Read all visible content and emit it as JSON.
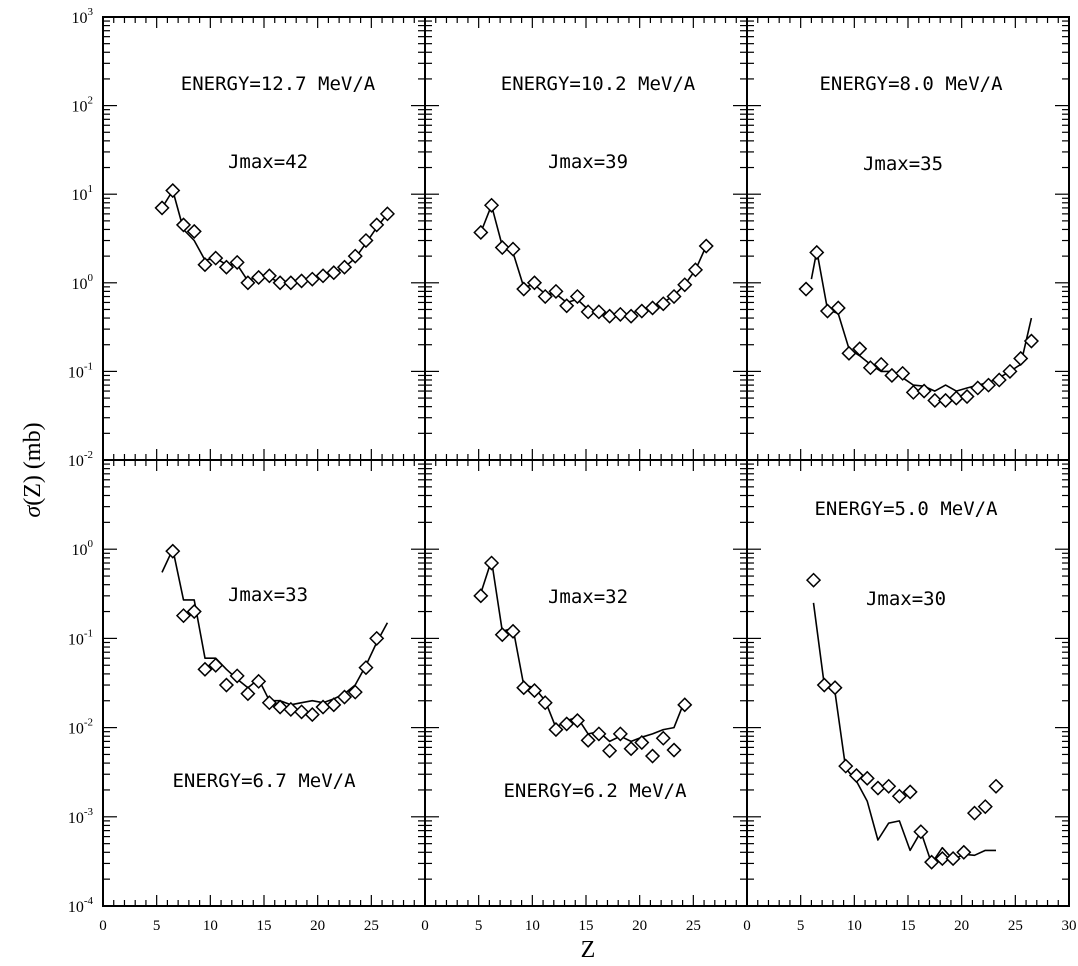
{
  "chart_data": {
    "type": "scatter",
    "ylabel": "σ(Z) (mb)",
    "xlabel": "Z",
    "xlim": [
      0,
      30
    ],
    "x_ticks": [
      "0",
      "5",
      "10",
      "15",
      "20",
      "25"
    ],
    "x_ticks_last": [
      "0",
      "5",
      "10",
      "15",
      "20",
      "25",
      "30"
    ],
    "y_scale": "log",
    "y_ticks_top": [
      {
        "base": "10",
        "exp": "3"
      },
      {
        "base": "10",
        "exp": "2"
      },
      {
        "base": "10",
        "exp": "1"
      },
      {
        "base": "10",
        "exp": "0"
      },
      {
        "base": "10",
        "exp": "-1"
      },
      {
        "base": "10",
        "exp": "-2"
      }
    ],
    "y_ticks_bottom": [
      {
        "base": "10",
        "exp": "0"
      },
      {
        "base": "10",
        "exp": "-1"
      },
      {
        "base": "10",
        "exp": "-2"
      },
      {
        "base": "10",
        "exp": "-3"
      },
      {
        "base": "10",
        "exp": "-4"
      }
    ],
    "panels": [
      {
        "energy": "ENERGY=12.7 MeV/A",
        "jmax": "Jmax=42",
        "ylim": [
          0.01,
          1000
        ],
        "points": [
          [
            5.5,
            7.0
          ],
          [
            6.5,
            11.0
          ],
          [
            7.5,
            4.5
          ],
          [
            8.5,
            3.8
          ],
          [
            9.5,
            1.6
          ],
          [
            10.5,
            1.9
          ],
          [
            11.5,
            1.5
          ],
          [
            12.5,
            1.7
          ],
          [
            13.5,
            1.0
          ],
          [
            14.5,
            1.15
          ],
          [
            15.5,
            1.2
          ],
          [
            16.5,
            1.0
          ],
          [
            17.5,
            1.0
          ],
          [
            18.5,
            1.05
          ],
          [
            19.5,
            1.1
          ],
          [
            20.5,
            1.2
          ],
          [
            21.5,
            1.3
          ],
          [
            22.5,
            1.5
          ],
          [
            23.5,
            2.0
          ],
          [
            24.5,
            3.0
          ],
          [
            25.5,
            4.5
          ],
          [
            26.5,
            6.0
          ]
        ],
        "curve": [
          [
            5.5,
            7.0
          ],
          [
            6.5,
            11.0
          ],
          [
            7.5,
            4.0
          ],
          [
            8.5,
            3.0
          ],
          [
            9.5,
            1.8
          ],
          [
            10.5,
            1.9
          ],
          [
            11.5,
            1.6
          ],
          [
            12.5,
            1.6
          ],
          [
            13.5,
            1.05
          ],
          [
            14.5,
            1.2
          ],
          [
            15.5,
            1.15
          ],
          [
            16.5,
            1.0
          ],
          [
            17.5,
            1.0
          ],
          [
            18.5,
            1.05
          ],
          [
            19.5,
            1.1
          ],
          [
            20.5,
            1.2
          ],
          [
            21.5,
            1.3
          ],
          [
            22.5,
            1.5
          ],
          [
            23.5,
            1.9
          ],
          [
            24.5,
            2.8
          ],
          [
            25.5,
            4.2
          ],
          [
            26.5,
            6.0
          ]
        ]
      },
      {
        "energy": "ENERGY=10.2 MeV/A",
        "jmax": "Jmax=39",
        "ylim": [
          0.01,
          1000
        ],
        "points": [
          [
            5.2,
            3.7
          ],
          [
            6.2,
            7.5
          ],
          [
            7.2,
            2.5
          ],
          [
            8.2,
            2.4
          ],
          [
            9.2,
            0.85
          ],
          [
            10.2,
            1.0
          ],
          [
            11.2,
            0.7
          ],
          [
            12.2,
            0.8
          ],
          [
            13.2,
            0.55
          ],
          [
            14.2,
            0.7
          ],
          [
            15.2,
            0.47
          ],
          [
            16.2,
            0.47
          ],
          [
            17.2,
            0.42
          ],
          [
            18.2,
            0.44
          ],
          [
            19.2,
            0.42
          ],
          [
            20.2,
            0.48
          ],
          [
            21.2,
            0.52
          ],
          [
            22.2,
            0.58
          ],
          [
            23.2,
            0.7
          ],
          [
            24.2,
            0.95
          ],
          [
            25.2,
            1.4
          ],
          [
            26.2,
            2.6
          ]
        ],
        "curve": [
          [
            5.2,
            3.7
          ],
          [
            6.2,
            7.5
          ],
          [
            7.2,
            2.6
          ],
          [
            8.2,
            2.2
          ],
          [
            9.2,
            0.9
          ],
          [
            10.2,
            0.95
          ],
          [
            11.2,
            0.75
          ],
          [
            12.2,
            0.75
          ],
          [
            13.2,
            0.6
          ],
          [
            14.2,
            0.65
          ],
          [
            15.2,
            0.5
          ],
          [
            16.2,
            0.47
          ],
          [
            17.2,
            0.45
          ],
          [
            18.2,
            0.44
          ],
          [
            19.2,
            0.45
          ],
          [
            20.2,
            0.5
          ],
          [
            21.2,
            0.55
          ],
          [
            22.2,
            0.6
          ],
          [
            23.2,
            0.72
          ],
          [
            24.2,
            0.95
          ],
          [
            25.2,
            1.4
          ],
          [
            26.2,
            2.6
          ]
        ]
      },
      {
        "energy": "ENERGY=8.0 MeV/A",
        "jmax": "Jmax=35",
        "ylim": [
          0.01,
          1000
        ],
        "points": [
          [
            5.5,
            0.85
          ],
          [
            6.5,
            2.2
          ],
          [
            7.5,
            0.48
          ],
          [
            8.5,
            0.52
          ],
          [
            9.5,
            0.16
          ],
          [
            10.5,
            0.18
          ],
          [
            11.5,
            0.11
          ],
          [
            12.5,
            0.12
          ],
          [
            13.5,
            0.09
          ],
          [
            14.5,
            0.095
          ],
          [
            15.5,
            0.058
          ],
          [
            16.5,
            0.06
          ],
          [
            17.5,
            0.047
          ],
          [
            18.5,
            0.047
          ],
          [
            19.5,
            0.05
          ],
          [
            20.5,
            0.052
          ],
          [
            21.5,
            0.065
          ],
          [
            22.5,
            0.07
          ],
          [
            23.5,
            0.08
          ],
          [
            24.5,
            0.1
          ],
          [
            25.5,
            0.14
          ],
          [
            26.5,
            0.22
          ]
        ],
        "curve": [
          [
            6.0,
            1.1
          ],
          [
            6.5,
            2.3
          ],
          [
            7.5,
            0.5
          ],
          [
            8.5,
            0.45
          ],
          [
            9.5,
            0.18
          ],
          [
            10.5,
            0.15
          ],
          [
            11.5,
            0.12
          ],
          [
            12.5,
            0.1
          ],
          [
            13.5,
            0.1
          ],
          [
            14.5,
            0.085
          ],
          [
            15.5,
            0.07
          ],
          [
            16.5,
            0.068
          ],
          [
            17.5,
            0.06
          ],
          [
            18.5,
            0.07
          ],
          [
            19.5,
            0.06
          ],
          [
            20.5,
            0.065
          ],
          [
            21.5,
            0.07
          ],
          [
            22.5,
            0.075
          ],
          [
            23.5,
            0.085
          ],
          [
            24.5,
            0.1
          ],
          [
            25.5,
            0.12
          ],
          [
            26.5,
            0.4
          ]
        ]
      },
      {
        "energy": "ENERGY=6.7 MeV/A",
        "jmax": "Jmax=33",
        "ylim": [
          0.0001,
          10
        ],
        "points": [
          [
            6.5,
            0.95
          ],
          [
            7.5,
            0.18
          ],
          [
            8.5,
            0.2
          ],
          [
            9.5,
            0.045
          ],
          [
            10.5,
            0.05
          ],
          [
            11.5,
            0.03
          ],
          [
            12.5,
            0.038
          ],
          [
            13.5,
            0.024
          ],
          [
            14.5,
            0.033
          ],
          [
            15.5,
            0.019
          ],
          [
            16.5,
            0.017
          ],
          [
            17.5,
            0.016
          ],
          [
            18.5,
            0.015
          ],
          [
            19.5,
            0.014
          ],
          [
            20.5,
            0.017
          ],
          [
            21.5,
            0.018
          ],
          [
            22.5,
            0.022
          ],
          [
            23.5,
            0.025
          ],
          [
            24.5,
            0.047
          ],
          [
            25.5,
            0.1
          ]
        ],
        "curve": [
          [
            5.5,
            0.55
          ],
          [
            6.5,
            1.0
          ],
          [
            7.5,
            0.27
          ],
          [
            8.5,
            0.27
          ],
          [
            9.5,
            0.06
          ],
          [
            10.5,
            0.06
          ],
          [
            11.5,
            0.045
          ],
          [
            12.5,
            0.035
          ],
          [
            13.5,
            0.028
          ],
          [
            14.5,
            0.035
          ],
          [
            15.5,
            0.02
          ],
          [
            16.5,
            0.02
          ],
          [
            17.5,
            0.018
          ],
          [
            18.5,
            0.019
          ],
          [
            19.5,
            0.02
          ],
          [
            20.5,
            0.019
          ],
          [
            21.5,
            0.021
          ],
          [
            22.5,
            0.024
          ],
          [
            23.5,
            0.03
          ],
          [
            24.5,
            0.05
          ],
          [
            25.5,
            0.09
          ],
          [
            26.5,
            0.15
          ]
        ]
      },
      {
        "energy": "ENERGY=6.2 MeV/A",
        "jmax": "Jmax=32",
        "ylim": [
          0.0001,
          10
        ],
        "points": [
          [
            5.2,
            0.3
          ],
          [
            6.2,
            0.7
          ],
          [
            7.2,
            0.11
          ],
          [
            8.2,
            0.12
          ],
          [
            9.2,
            0.028
          ],
          [
            10.2,
            0.026
          ],
          [
            11.2,
            0.019
          ],
          [
            12.2,
            0.0095
          ],
          [
            13.2,
            0.011
          ],
          [
            14.2,
            0.012
          ],
          [
            15.2,
            0.0072
          ],
          [
            16.2,
            0.0085
          ],
          [
            17.2,
            0.0055
          ],
          [
            18.2,
            0.0085
          ],
          [
            19.2,
            0.0058
          ],
          [
            20.2,
            0.0068
          ],
          [
            21.2,
            0.0048
          ],
          [
            22.2,
            0.0076
          ],
          [
            23.2,
            0.0056
          ],
          [
            24.2,
            0.018
          ]
        ],
        "curve": [
          [
            5.2,
            0.32
          ],
          [
            6.2,
            0.75
          ],
          [
            7.2,
            0.12
          ],
          [
            8.2,
            0.13
          ],
          [
            9.2,
            0.03
          ],
          [
            10.2,
            0.028
          ],
          [
            11.2,
            0.02
          ],
          [
            12.2,
            0.01
          ],
          [
            13.2,
            0.012
          ],
          [
            14.2,
            0.013
          ],
          [
            15.2,
            0.0085
          ],
          [
            16.2,
            0.009
          ],
          [
            17.2,
            0.007
          ],
          [
            18.2,
            0.008
          ],
          [
            19.2,
            0.007
          ],
          [
            20.2,
            0.0078
          ],
          [
            21.2,
            0.0085
          ],
          [
            22.2,
            0.0095
          ],
          [
            23.2,
            0.01
          ],
          [
            24.2,
            0.02
          ]
        ]
      },
      {
        "energy": "ENERGY=5.0 MeV/A",
        "jmax": "Jmax=30",
        "ylim": [
          0.0001,
          10
        ],
        "points": [
          [
            6.2,
            0.45
          ],
          [
            7.2,
            0.03
          ],
          [
            8.2,
            0.028
          ],
          [
            9.2,
            0.0037
          ],
          [
            10.2,
            0.0029
          ],
          [
            11.2,
            0.0027
          ],
          [
            12.2,
            0.0021
          ],
          [
            13.2,
            0.0022
          ],
          [
            14.2,
            0.0017
          ],
          [
            15.2,
            0.0019
          ],
          [
            16.2,
            0.00068
          ],
          [
            17.2,
            0.00031
          ],
          [
            18.2,
            0.00034
          ],
          [
            19.2,
            0.00034
          ],
          [
            20.2,
            0.0004
          ],
          [
            21.2,
            0.0011
          ],
          [
            22.2,
            0.0013
          ],
          [
            23.2,
            0.0022
          ]
        ],
        "curve": [
          [
            6.2,
            0.25
          ],
          [
            7.2,
            0.03
          ],
          [
            8.2,
            0.025
          ],
          [
            9.2,
            0.0035
          ],
          [
            10.2,
            0.0025
          ],
          [
            11.2,
            0.0015
          ],
          [
            12.2,
            0.00055
          ],
          [
            13.2,
            0.00085
          ],
          [
            14.2,
            0.0009
          ],
          [
            15.2,
            0.00042
          ],
          [
            16.2,
            0.00068
          ],
          [
            17.2,
            0.0003
          ],
          [
            18.2,
            0.00045
          ],
          [
            19.2,
            0.00033
          ],
          [
            20.2,
            0.00038
          ],
          [
            21.2,
            0.00037
          ],
          [
            22.2,
            0.00042
          ],
          [
            23.2,
            0.00042
          ]
        ]
      }
    ]
  }
}
